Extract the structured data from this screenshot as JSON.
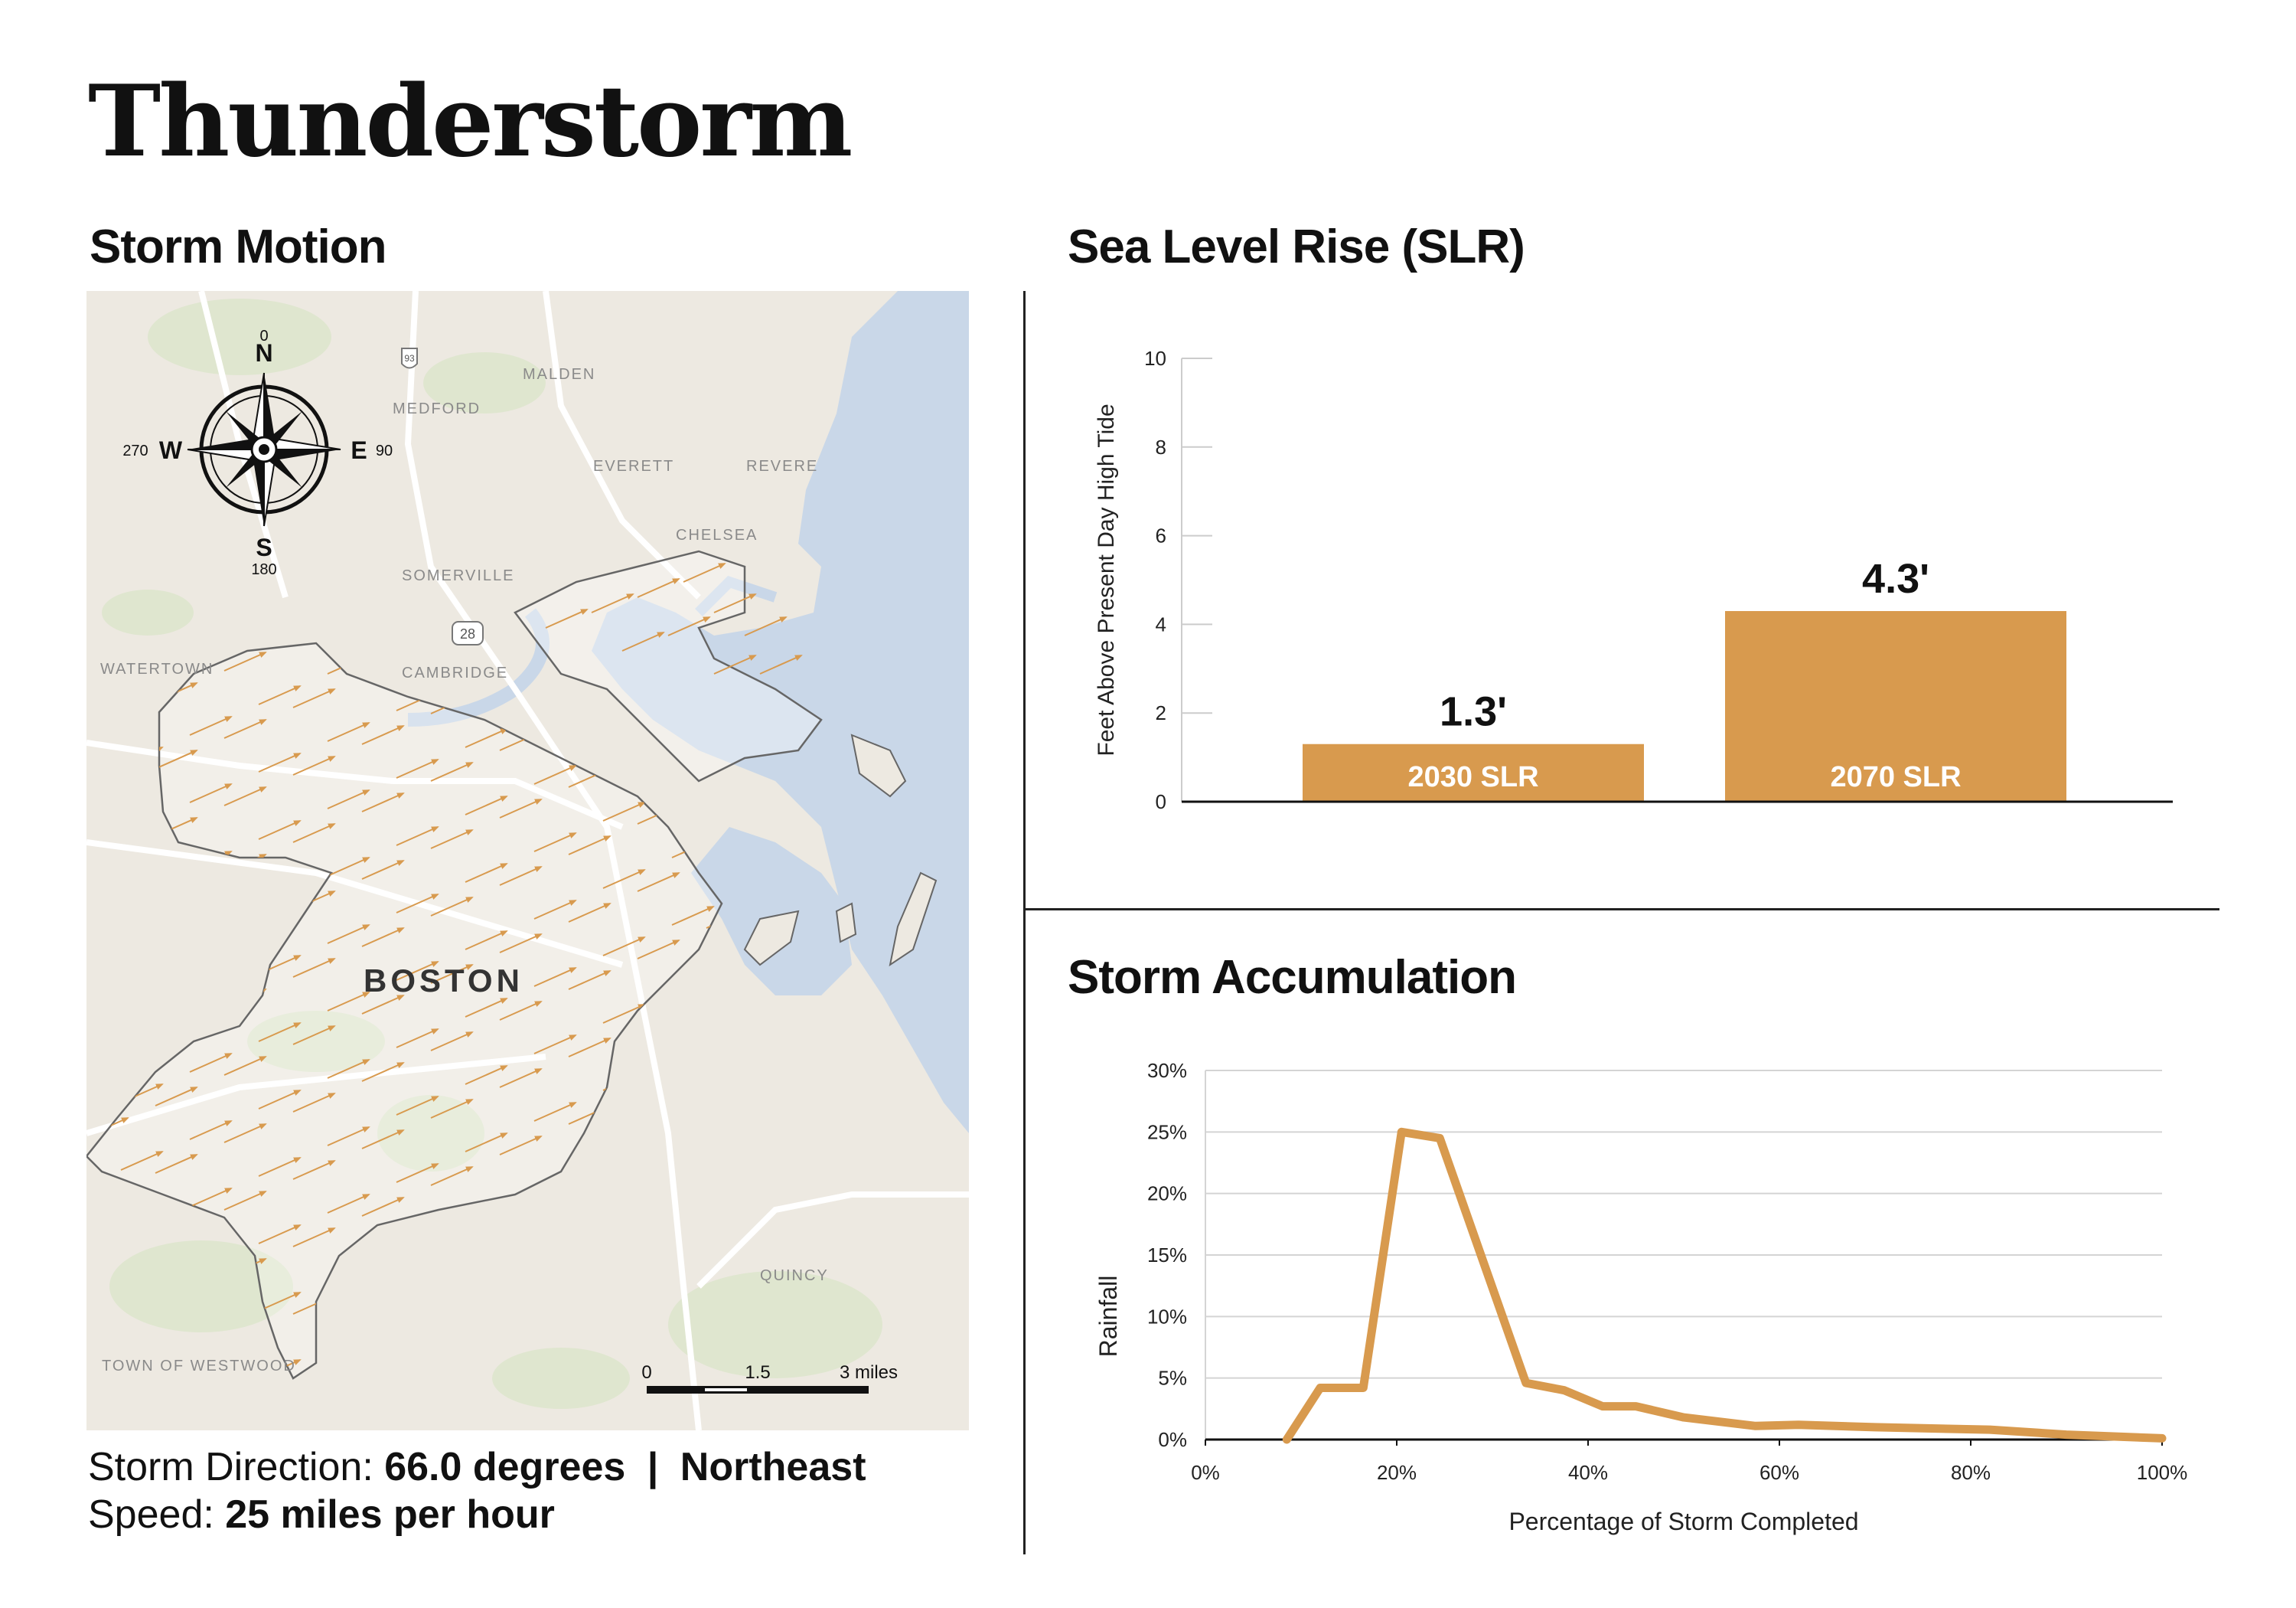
{
  "page": {
    "title": "Thunderstorm"
  },
  "storm_motion": {
    "heading": "Storm Motion",
    "direction_label": "Storm Direction:",
    "direction_value": "66.0 degrees",
    "separator": "|",
    "direction_name": "Northeast",
    "speed_label": "Speed:",
    "speed_value": "25 miles per hour",
    "map": {
      "city_label": "BOSTON",
      "places": [
        "MALDEN",
        "MEDFORD",
        "EVERETT",
        "REVERE",
        "CHELSEA",
        "SOMERVILLE",
        "WATERTOWN",
        "CAMBRIDGE",
        "QUINCY",
        "TOWN OF WESTWOOD"
      ],
      "route_shields": [
        "93",
        "28"
      ],
      "compass": {
        "n": "N",
        "e": "E",
        "s": "S",
        "w": "W",
        "n_deg": "0",
        "e_deg": "90",
        "s_deg": "180",
        "w_deg": "270"
      },
      "scale": {
        "t0": "0",
        "t1": "1.5",
        "t2": "3 miles"
      },
      "colors": {
        "water": "#c9d7e8",
        "land": "#ede9e1",
        "parks": "#dfe6cf",
        "arrow": "#d89a4e"
      }
    }
  },
  "slr": {
    "heading": "Sea Level Rise (SLR)",
    "chart_data": {
      "type": "bar",
      "categories": [
        "2030 SLR",
        "2070 SLR"
      ],
      "values": [
        1.3,
        4.3
      ],
      "value_labels": [
        "1.3'",
        "4.3'"
      ],
      "ylabel": "Feet Above Present Day High Tide",
      "ylim": [
        0,
        10
      ],
      "yticks": [
        "0",
        "2",
        "4",
        "6",
        "8",
        "10"
      ],
      "grid": true,
      "color": "#d89a4e"
    }
  },
  "accumulation": {
    "heading": "Storm Accumulation",
    "chart_data": {
      "type": "line",
      "x": [
        8.5,
        12,
        16.5,
        20.5,
        24.5,
        33.5,
        37.5,
        41.5,
        45,
        50,
        57.5,
        62,
        70,
        82,
        90,
        100
      ],
      "y": [
        0,
        4.2,
        4.2,
        25,
        24.5,
        4.6,
        4,
        2.7,
        2.7,
        1.8,
        1.1,
        1.2,
        1.0,
        0.8,
        0.4,
        0.1
      ],
      "xlabel": "Percentage of Storm Completed",
      "ylabel": "Rainfall",
      "xlim": [
        0,
        100
      ],
      "ylim": [
        0,
        30
      ],
      "xticks": [
        "0%",
        "20%",
        "40%",
        "60%",
        "80%",
        "100%"
      ],
      "yticks": [
        "0%",
        "5%",
        "10%",
        "15%",
        "20%",
        "25%",
        "30%"
      ],
      "grid": true,
      "color": "#d89a4e"
    }
  }
}
